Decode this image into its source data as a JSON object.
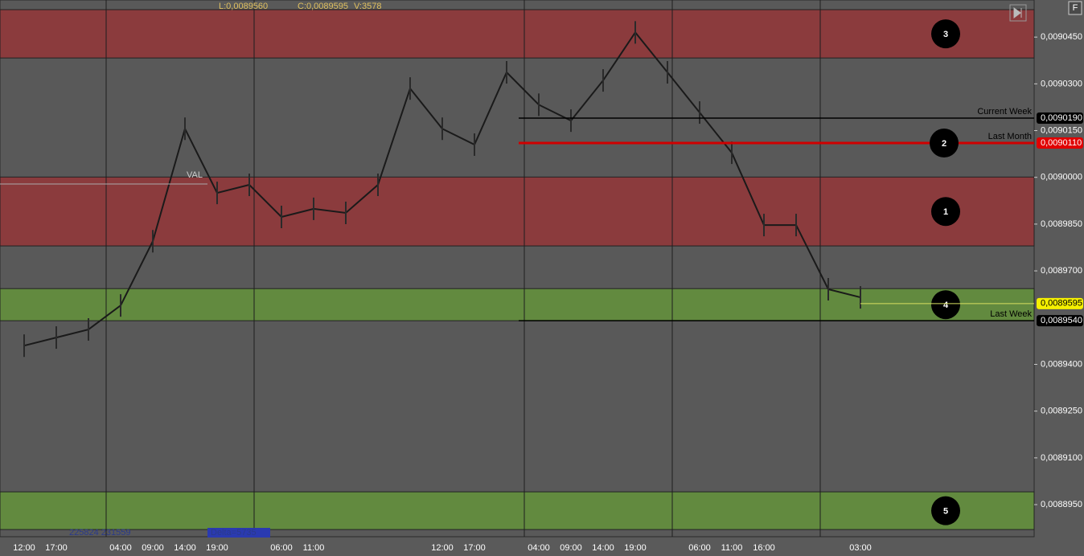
{
  "chart": {
    "header": [
      "L:0,0089560",
      "C:0,0089595",
      "V:3578"
    ],
    "ylim": [
      0.0088847,
      0.0090569
    ],
    "yticks": [
      {
        "value": 0.009045,
        "label": "0,0090450"
      },
      {
        "value": 0.00903,
        "label": "0,0090300"
      },
      {
        "value": 0.009015,
        "label": "0,0090150"
      },
      {
        "value": 0.009,
        "label": "0,0090000"
      },
      {
        "value": 0.008985,
        "label": "0,0089850"
      },
      {
        "value": 0.00897,
        "label": "0,0089700"
      },
      {
        "value": 0.00894,
        "label": "0,0089400"
      },
      {
        "value": 0.008925,
        "label": "0,0089250"
      },
      {
        "value": 0.00891,
        "label": "0,0089100"
      },
      {
        "value": 0.008895,
        "label": "0,0088950"
      }
    ],
    "zones": [
      {
        "label": "3",
        "color": "#8b3b3d",
        "range": [
          0.0090383,
          0.0090538
        ]
      },
      {
        "label": "1",
        "color": "#8b3b3d",
        "range": [
          0.008978,
          0.0090001
        ]
      },
      {
        "label": "4",
        "color": "#628a3f",
        "range": [
          0.008954,
          0.0089643
        ]
      },
      {
        "label": "5",
        "color": "#628a3f",
        "range": [
          0.008887,
          0.0088991
        ]
      }
    ],
    "levels": [
      {
        "name": "Current Week",
        "value": 0.009019,
        "value_label": "0,0090190",
        "color": "#000000",
        "badge": "#000000"
      },
      {
        "name": "Last Month",
        "value": 0.009011,
        "value_label": "0,0090110",
        "color": "#d00000",
        "badge": "#e00000",
        "marker": "2"
      },
      {
        "name": "Last Week",
        "value": 0.008954,
        "value_label": "0,0089540",
        "color": "#000000",
        "badge": "#000000"
      }
    ],
    "current_price": {
      "value": 0.0089595,
      "label": "0,0089595"
    },
    "val_label": "VAL",
    "footer": [
      "225824 231559",
      "Delta=5735"
    ],
    "time_labels": [
      "12:00",
      "17:00",
      null,
      "04:00",
      "09:00",
      "14:00",
      "19:00",
      null,
      "06:00",
      "11:00",
      null,
      null,
      null,
      "12:00",
      "17:00",
      null,
      "04:00",
      "09:00",
      "14:00",
      "19:00",
      null,
      "06:00",
      "11:00",
      "16:00",
      null,
      null,
      "03:00"
    ],
    "price_trace": [
      0.008946,
      0.0089486,
      0.0089512,
      0.0089589,
      0.0089795,
      0.0090156,
      0.008995,
      0.0089976,
      0.0089873,
      0.0089899,
      0.0089886,
      0.0089976,
      0.0090285,
      0.0090156,
      0.0090105,
      0.0090337,
      0.0090233,
      0.0090182,
      0.0090311,
      0.0090465,
      0.0090337,
      0.0090208,
      0.0090079,
      0.0089847,
      0.0089847,
      0.0089641,
      0.0089615
    ]
  }
}
